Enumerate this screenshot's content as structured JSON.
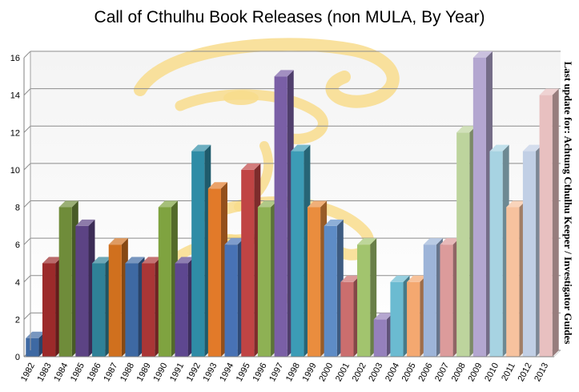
{
  "chart_data": {
    "type": "bar",
    "title": "Call of Cthulhu Book Releases (non MULA, By Year)",
    "annotation": "Last update for: Achtung Cthulhu Keeper / Investigator Guides",
    "xlabel": "",
    "ylabel": "",
    "ylim": [
      0,
      16
    ],
    "yticks": [
      0,
      2,
      4,
      6,
      8,
      10,
      12,
      14,
      16
    ],
    "grid": true,
    "legend": "none",
    "categories": [
      "1982",
      "1983",
      "1984",
      "1985",
      "1986",
      "1987",
      "1988",
      "1989",
      "1990",
      "1991",
      "1992",
      "1993",
      "1994",
      "1995",
      "1996",
      "1997",
      "1998",
      "1999",
      "2000",
      "2001",
      "2002",
      "2003",
      "2004",
      "2005",
      "2006",
      "2007",
      "2008",
      "2009",
      "2010",
      "2011",
      "2012",
      "2013"
    ],
    "values": [
      1,
      5,
      8,
      7,
      5,
      6,
      5,
      5,
      8,
      5,
      11,
      9,
      6,
      10,
      8,
      15,
      11,
      8,
      7,
      4,
      6,
      2,
      4,
      4,
      6,
      6,
      12,
      16,
      11,
      8,
      11,
      14
    ],
    "colors": [
      "#3E69A3",
      "#9C2A2A",
      "#6F8C3A",
      "#5C4384",
      "#2F8197",
      "#D0701E",
      "#3E69A3",
      "#AA3636",
      "#7FA340",
      "#5E4790",
      "#2F8CA6",
      "#E27A29",
      "#4872B5",
      "#C04444",
      "#8EB154",
      "#7A5FA6",
      "#3C9CB6",
      "#EA8D3E",
      "#5E8CC6",
      "#CB6E6E",
      "#A2C46E",
      "#9580BC",
      "#6BBBD1",
      "#F4A870",
      "#9DB4D8",
      "#DC9B9B",
      "#BDD49D",
      "#B3A6D0",
      "#A7D3E2",
      "#F7C29E",
      "#C1CFE5",
      "#E8C0C0"
    ],
    "watermark": "yellow-tentacle-logo"
  }
}
